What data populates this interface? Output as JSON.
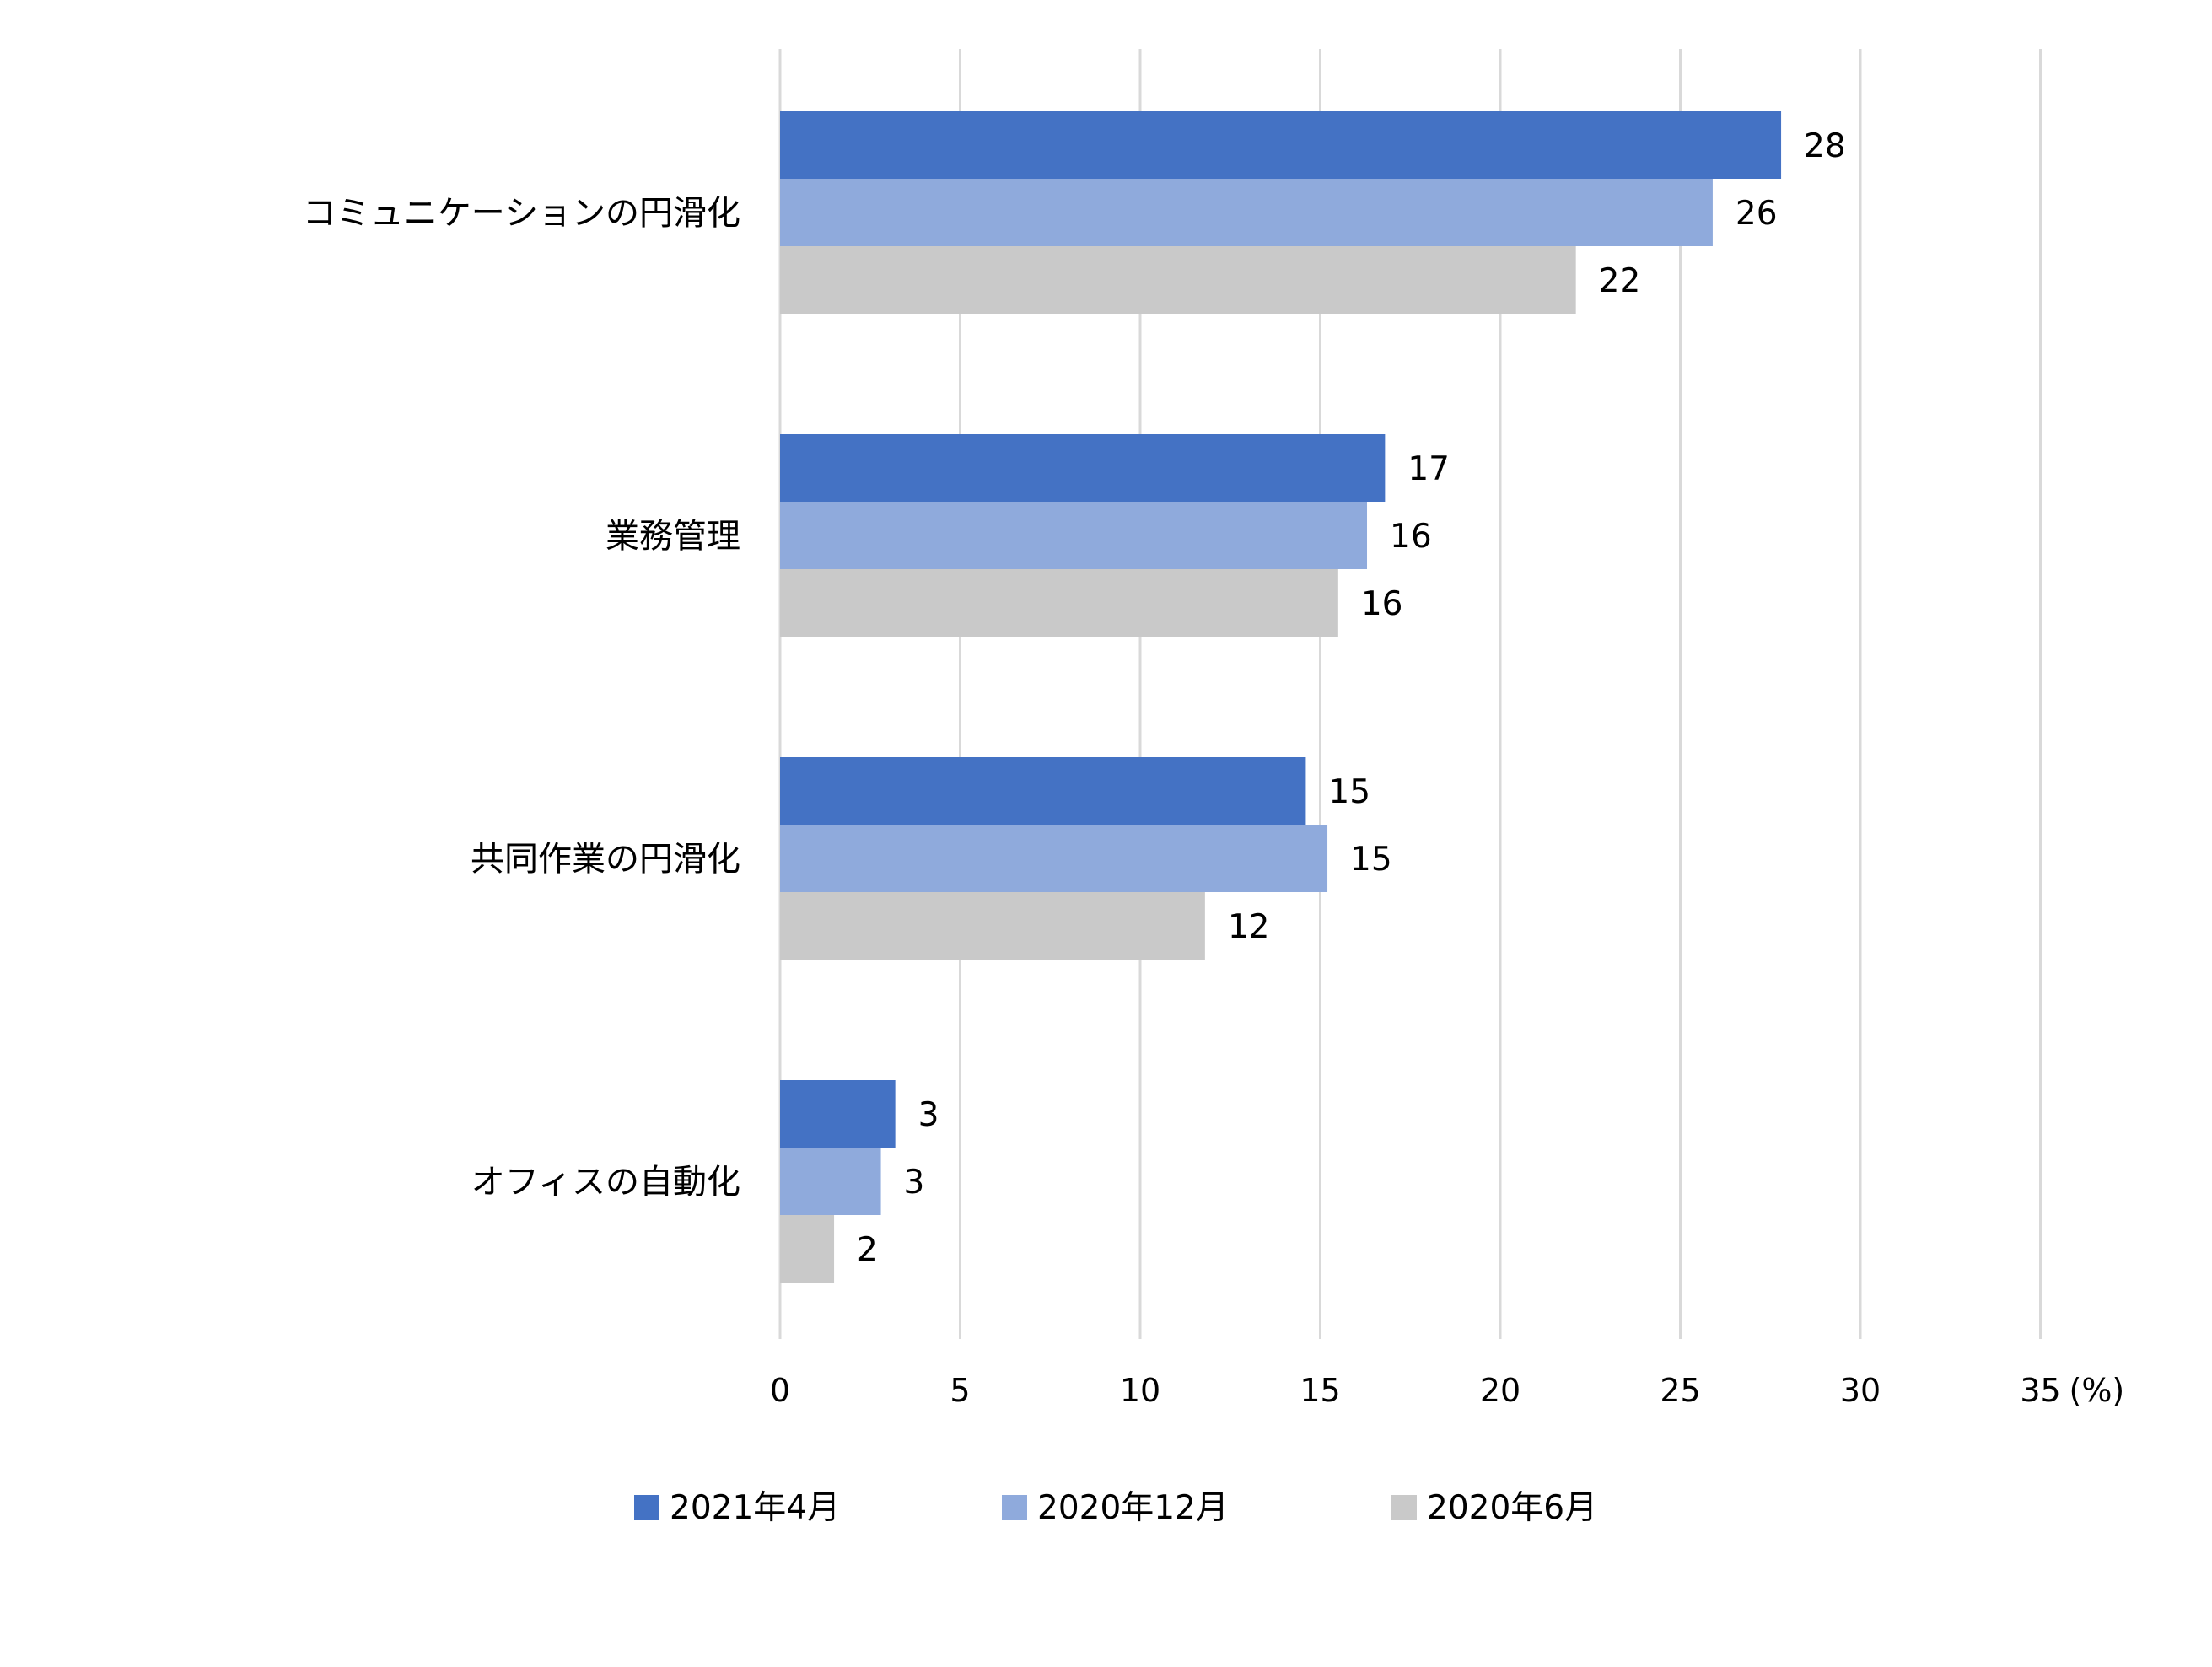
{
  "chart_data": {
    "type": "bar",
    "orientation": "horizontal",
    "categories": [
      "コミュニケーションの円滑化",
      "業務管理",
      "共同作業の円滑化",
      "オフィスの自動化"
    ],
    "series": [
      {
        "name": "2021年4月",
        "color": "#4472c4",
        "values": [
          28,
          17,
          15,
          3
        ],
        "bar_values": [
          27.8,
          16.8,
          14.6,
          3.2
        ]
      },
      {
        "name": "2020年12月",
        "color": "#8faadc",
        "values": [
          26,
          16,
          15,
          3
        ],
        "bar_values": [
          25.9,
          16.3,
          15.2,
          2.8
        ]
      },
      {
        "name": "2020年6月",
        "color": "#c9c9c9",
        "values": [
          22,
          16,
          12,
          2
        ],
        "bar_values": [
          22.1,
          15.5,
          11.8,
          1.5
        ]
      }
    ],
    "xlim": [
      0,
      35
    ],
    "x_ticks": [
      0,
      5,
      10,
      15,
      20,
      25,
      30,
      35
    ],
    "x_ticks_text": [
      "0",
      "5",
      "10",
      "15",
      "20",
      "25",
      "30",
      "35"
    ],
    "unit_label": "(%)",
    "grid": true,
    "legend_position": "bottom"
  }
}
